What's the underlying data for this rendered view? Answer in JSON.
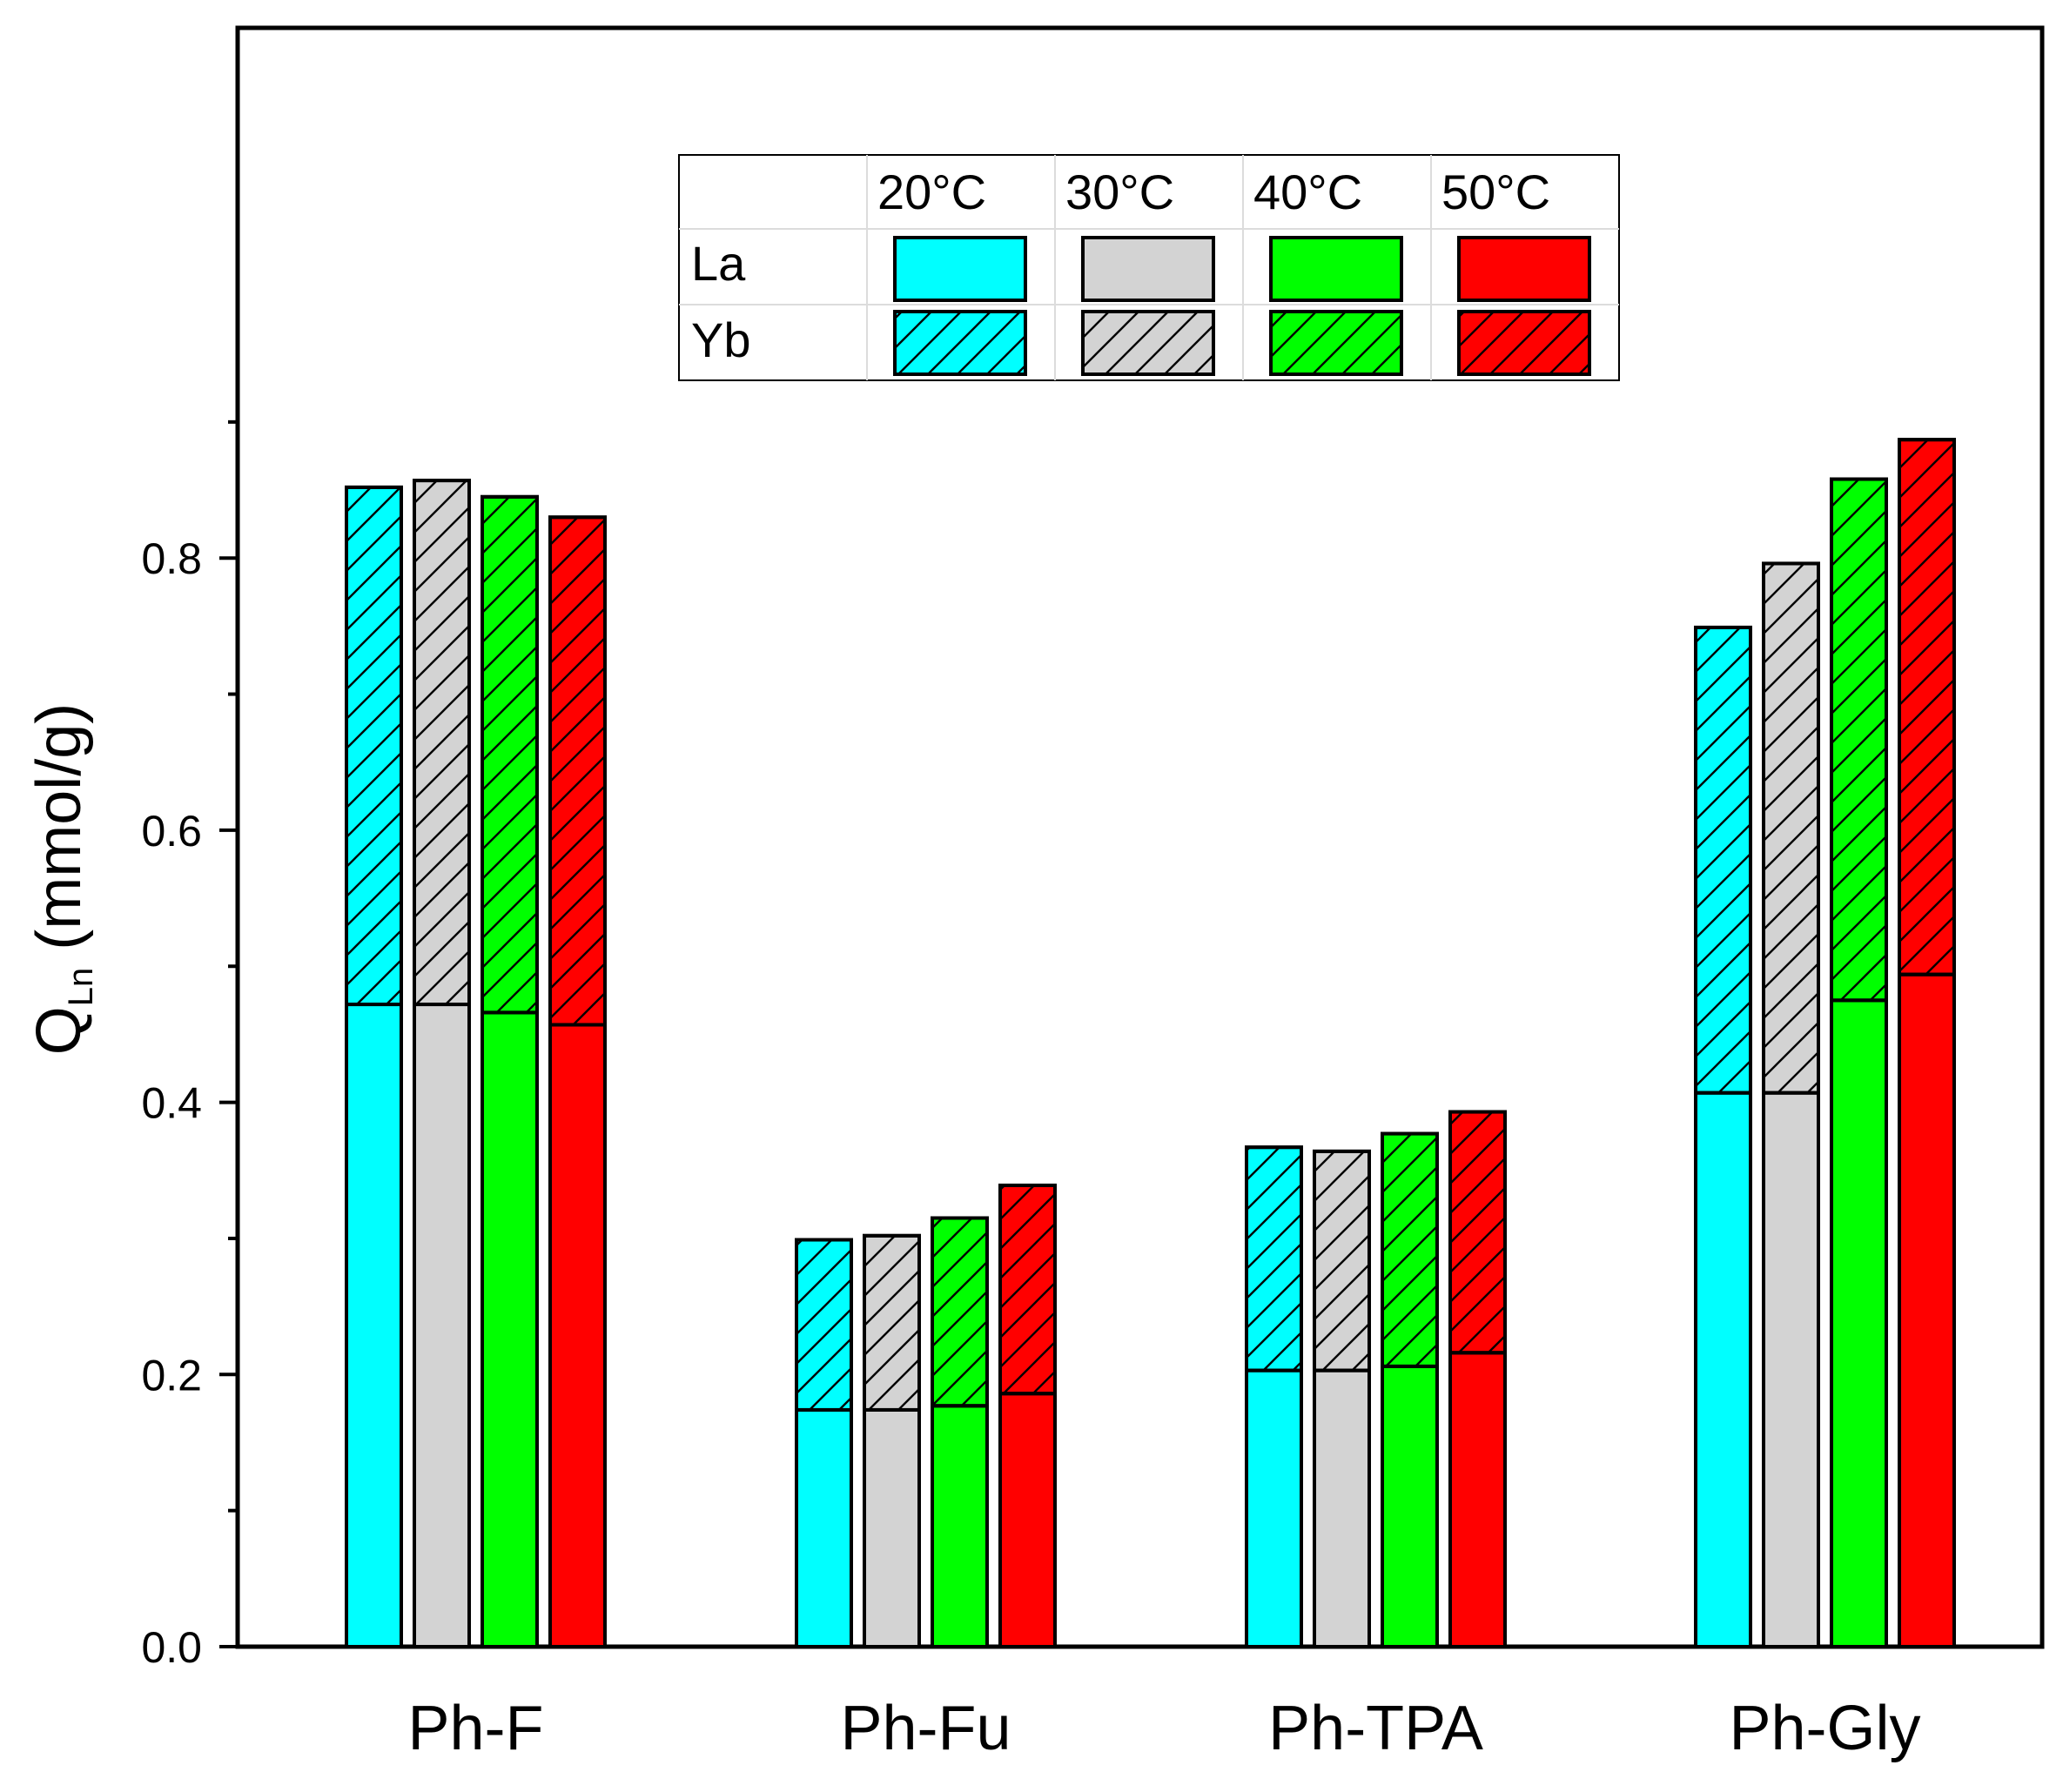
{
  "chart_data": {
    "type": "bar",
    "stacked": true,
    "title": "",
    "xlabel": "",
    "ylabel_main": "Q",
    "ylabel_sub": "Ln",
    "ylabel_unit": " (mmol/g)",
    "ylim": [
      0,
      0.95
    ],
    "yticks": [
      "0.0",
      "0.2",
      "0.4",
      "0.6",
      "0.8"
    ],
    "ytick_values": [
      0,
      0.2,
      0.4,
      0.6,
      0.8
    ],
    "categories": [
      "Ph-F",
      "Ph-Fu",
      "Ph-TPA",
      "Ph-Gly"
    ],
    "temperatures": [
      "20°C",
      "30°C",
      "40°C",
      "50°C"
    ],
    "elements": [
      "La",
      "Yb"
    ],
    "colors": [
      "#00ffff",
      "#d3d3d3",
      "#00ff00",
      "#ff0000"
    ],
    "series": [
      {
        "temperature": "20°C",
        "La": [
          0.472,
          0.174,
          0.203,
          0.407
        ],
        "total": [
          0.852,
          0.299,
          0.367,
          0.749
        ]
      },
      {
        "temperature": "30°C",
        "La": [
          0.472,
          0.174,
          0.203,
          0.407
        ],
        "total": [
          0.857,
          0.302,
          0.364,
          0.796
        ]
      },
      {
        "temperature": "40°C",
        "La": [
          0.466,
          0.177,
          0.206,
          0.475
        ],
        "total": [
          0.845,
          0.315,
          0.377,
          0.858
        ]
      },
      {
        "temperature": "50°C",
        "La": [
          0.457,
          0.186,
          0.216,
          0.494
        ],
        "total": [
          0.83,
          0.339,
          0.393,
          0.887
        ]
      }
    ],
    "legend_position": "top-center",
    "grid": false
  }
}
